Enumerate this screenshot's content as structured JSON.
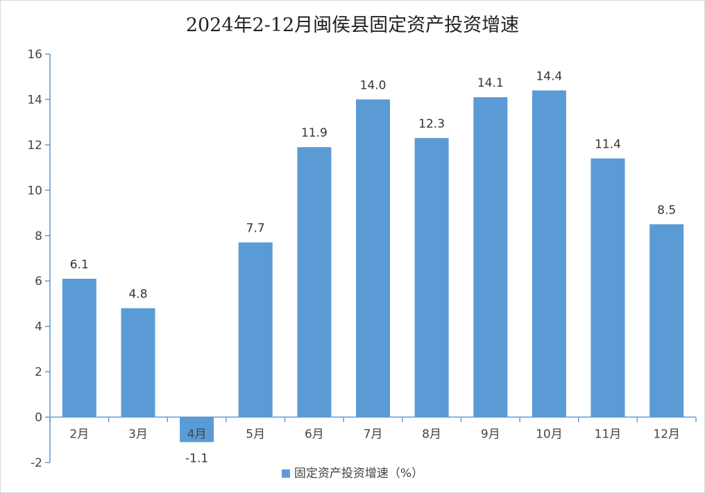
{
  "chart_data": {
    "type": "bar",
    "title": "2024年2-12月闽侯县固定资产投资增速",
    "categories": [
      "2月",
      "3月",
      "4月",
      "5月",
      "6月",
      "7月",
      "8月",
      "9月",
      "10月",
      "11月",
      "12月"
    ],
    "series": [
      {
        "name": "固定资产投资增速（%）",
        "values": [
          6.1,
          4.8,
          -1.1,
          7.7,
          11.9,
          14.0,
          12.3,
          14.1,
          14.4,
          11.4,
          8.5
        ],
        "labels": [
          "6.1",
          "4.8",
          "-1.1",
          "7.7",
          "11.9",
          "14.0",
          "12.3",
          "14.1",
          "14.4",
          "11.4",
          "8.5"
        ],
        "color": "#5b9bd5"
      }
    ],
    "yticks": [
      "16",
      "14",
      "12",
      "10",
      "8",
      "6",
      "4",
      "2",
      "0",
      "-2"
    ],
    "ylim": [
      -2,
      16
    ],
    "xlabel": "",
    "ylabel": "",
    "grid": false,
    "legend_position": "bottom",
    "axis_color": "#5b9bd5"
  }
}
